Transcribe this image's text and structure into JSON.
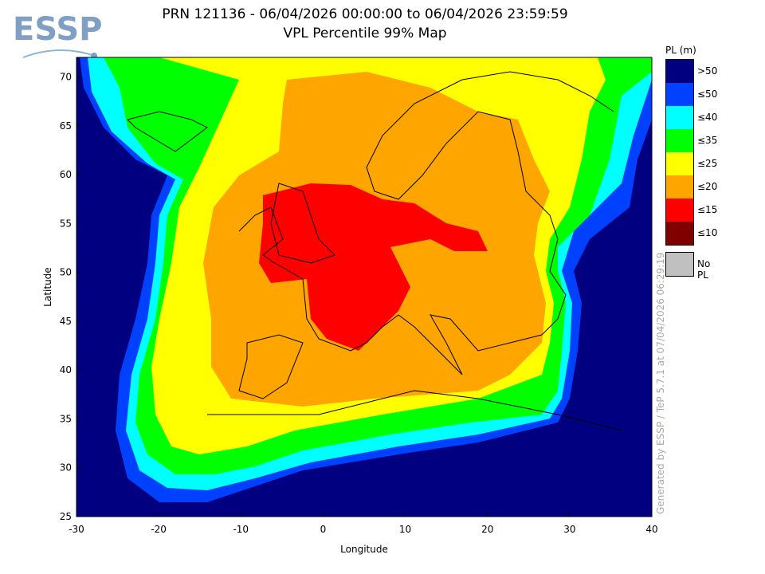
{
  "logo": "ESSP",
  "title": {
    "line1": "PRN 121136 - 06/04/2026 00:00:00 to 06/04/2026 23:59:59",
    "line2": "VPL Percentile 99% Map"
  },
  "watermark": "Generated by ESSP / TeP 5.7.1 at 07/04/2026 06:29:19",
  "chart_data": {
    "type": "heatmap",
    "xlabel": "Longitude",
    "ylabel": "Latitude",
    "xlim": [
      -30,
      40
    ],
    "ylim": [
      25,
      72
    ],
    "xticks": [
      -30,
      -20,
      -10,
      0,
      10,
      20,
      30,
      40
    ],
    "yticks": [
      25,
      30,
      35,
      40,
      45,
      50,
      55,
      60,
      65,
      70
    ],
    "legend": {
      "title": "PL (m)",
      "items": [
        {
          "label": ">50",
          "color": "#000080"
        },
        {
          "label": "≤50",
          "color": "#0040ff"
        },
        {
          "label": "≤40",
          "color": "#00ffff"
        },
        {
          "label": "≤35",
          "color": "#00ff00"
        },
        {
          "label": "≤25",
          "color": "#ffff00"
        },
        {
          "label": "≤20",
          "color": "#ffa500"
        },
        {
          "label": "≤15",
          "color": "#ff0000"
        },
        {
          "label": "≤10",
          "color": "#800000"
        }
      ],
      "nopl": {
        "label": "No PL",
        "color": "#c0c0c0"
      }
    }
  }
}
